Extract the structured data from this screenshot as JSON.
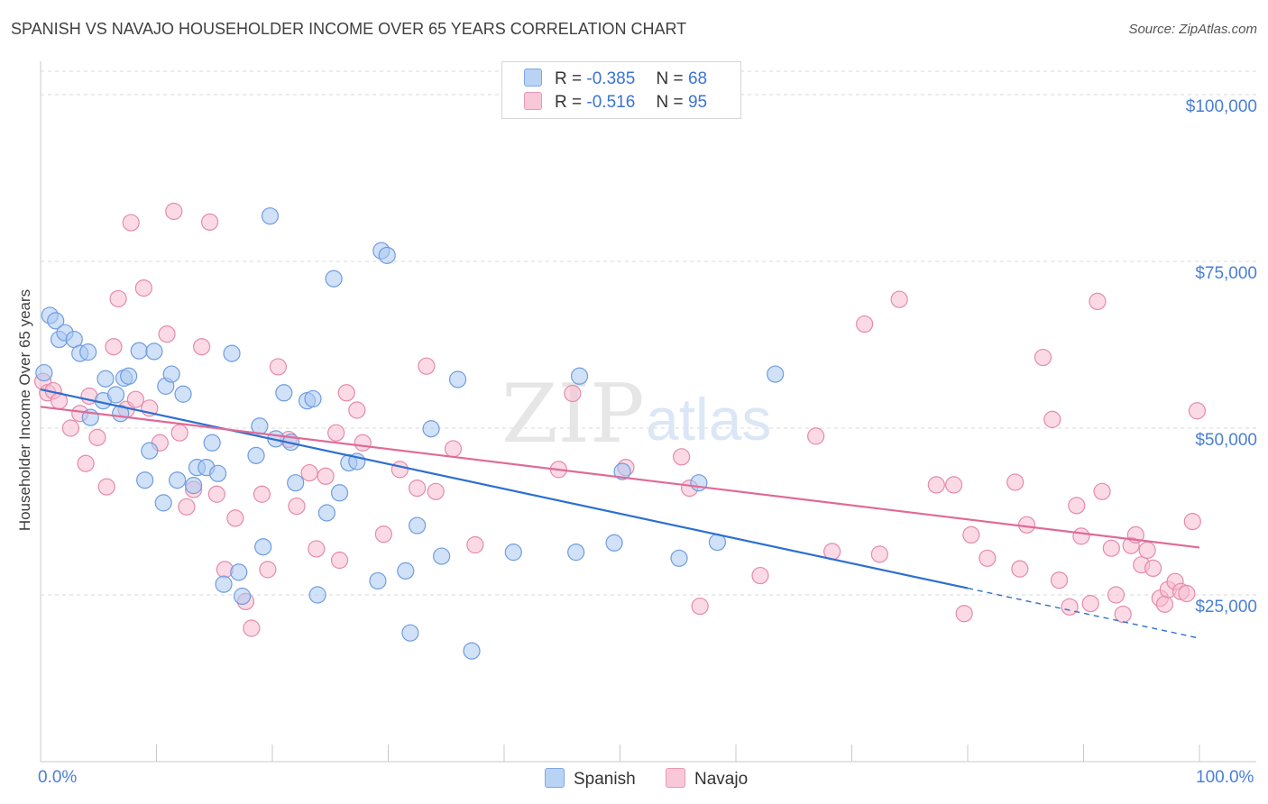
{
  "header": {
    "title": "SPANISH VS NAVAJO HOUSEHOLDER INCOME OVER 65 YEARS CORRELATION CHART",
    "source": "Source: ZipAtlas.com"
  },
  "watermark": {
    "zip": "ZIP",
    "atlas": "atlas"
  },
  "legend": {
    "spanish": {
      "r_label": "R =",
      "r_value": "-0.385",
      "n_label": "N =",
      "n_value": "68"
    },
    "navajo": {
      "r_label": "R =",
      "r_value": "-0.516",
      "n_label": "N =",
      "n_value": "95"
    }
  },
  "colors": {
    "spanish_fill": "#a9c8f3",
    "spanish_stroke": "#6f9de0",
    "spanish_line": "#2d6fd0",
    "navajo_fill": "#f7bcd0",
    "navajo_stroke": "#e58aab",
    "navajo_line": "#e06a96",
    "tick_text": "#4a7fd6",
    "grid": "#d9d9d9"
  },
  "chart_data": {
    "type": "scatter",
    "title": "SPANISH VS NAVAJO HOUSEHOLDER INCOME OVER 65 YEARS CORRELATION CHART",
    "xlabel": "",
    "ylabel": "Householder Income Over 65 years",
    "xlim": [
      0,
      100
    ],
    "ylim": [
      0,
      105000
    ],
    "x_tick_labels": [
      "0.0%",
      "100.0%"
    ],
    "y_ticks": [
      {
        "value": 25000,
        "label": "$25,000"
      },
      {
        "value": 50000,
        "label": "$50,000"
      },
      {
        "value": 75000,
        "label": "$75,000"
      },
      {
        "value": 100000,
        "label": "$100,000"
      }
    ],
    "grid": true,
    "legend_position": "top-center",
    "series": [
      {
        "name": "Spanish",
        "r": -0.385,
        "n": 68,
        "trend": {
          "x0": 0,
          "y0": 55800,
          "x1": 80,
          "y1": 26000,
          "dash_to_x": 100,
          "dash_to_y": 18500
        },
        "points": [
          [
            0.3,
            58300
          ],
          [
            0.8,
            66900
          ],
          [
            1.3,
            66100
          ],
          [
            1.6,
            63300
          ],
          [
            2.1,
            64300
          ],
          [
            2.9,
            63300
          ],
          [
            3.4,
            61200
          ],
          [
            4.1,
            61400
          ],
          [
            4.3,
            51600
          ],
          [
            5.4,
            54100
          ],
          [
            5.6,
            57400
          ],
          [
            6.5,
            55000
          ],
          [
            7.2,
            57500
          ],
          [
            6.9,
            52200
          ],
          [
            7.6,
            57800
          ],
          [
            8.5,
            61600
          ],
          [
            9.0,
            42200
          ],
          [
            9.4,
            46600
          ],
          [
            9.8,
            61500
          ],
          [
            10.6,
            38800
          ],
          [
            10.8,
            56300
          ],
          [
            11.3,
            58100
          ],
          [
            11.8,
            42200
          ],
          [
            12.3,
            55100
          ],
          [
            13.2,
            41400
          ],
          [
            13.5,
            44100
          ],
          [
            14.3,
            44100
          ],
          [
            14.8,
            47800
          ],
          [
            15.3,
            43200
          ],
          [
            15.8,
            26600
          ],
          [
            16.5,
            61200
          ],
          [
            17.1,
            28400
          ],
          [
            17.4,
            24800
          ],
          [
            18.6,
            45900
          ],
          [
            18.9,
            50300
          ],
          [
            19.2,
            32200
          ],
          [
            20.3,
            48400
          ],
          [
            19.8,
            81800
          ],
          [
            21.0,
            55300
          ],
          [
            21.6,
            47900
          ],
          [
            22.0,
            41800
          ],
          [
            23.0,
            54100
          ],
          [
            23.5,
            54400
          ],
          [
            23.9,
            25000
          ],
          [
            24.7,
            37300
          ],
          [
            25.3,
            72400
          ],
          [
            25.8,
            40300
          ],
          [
            26.6,
            44800
          ],
          [
            27.3,
            45000
          ],
          [
            29.4,
            76600
          ],
          [
            29.1,
            27100
          ],
          [
            29.9,
            75900
          ],
          [
            31.5,
            28600
          ],
          [
            31.9,
            19300
          ],
          [
            32.5,
            35400
          ],
          [
            33.7,
            49900
          ],
          [
            34.6,
            30800
          ],
          [
            36.0,
            57300
          ],
          [
            37.2,
            16600
          ],
          [
            40.8,
            31400
          ],
          [
            46.5,
            57800
          ],
          [
            46.2,
            31400
          ],
          [
            49.5,
            32800
          ],
          [
            50.2,
            43500
          ],
          [
            55.1,
            30500
          ],
          [
            56.8,
            41800
          ],
          [
            58.4,
            32900
          ],
          [
            63.4,
            58100
          ]
        ]
      },
      {
        "name": "Navajo",
        "r": -0.516,
        "n": 95,
        "trend": {
          "x0": 0,
          "y0": 53200,
          "x1": 100,
          "y1": 32100
        },
        "points": [
          [
            0.2,
            57000
          ],
          [
            0.6,
            55300
          ],
          [
            1.1,
            55600
          ],
          [
            1.6,
            54100
          ],
          [
            2.6,
            50000
          ],
          [
            3.4,
            52200
          ],
          [
            3.9,
            44700
          ],
          [
            4.2,
            54800
          ],
          [
            4.9,
            48600
          ],
          [
            5.7,
            41200
          ],
          [
            6.3,
            62200
          ],
          [
            6.7,
            69400
          ],
          [
            7.4,
            52800
          ],
          [
            7.8,
            80800
          ],
          [
            8.2,
            54300
          ],
          [
            8.9,
            71000
          ],
          [
            9.4,
            53000
          ],
          [
            10.3,
            47800
          ],
          [
            10.9,
            64100
          ],
          [
            11.5,
            82500
          ],
          [
            12.0,
            49300
          ],
          [
            12.6,
            38200
          ],
          [
            13.2,
            40800
          ],
          [
            13.9,
            62200
          ],
          [
            14.6,
            80900
          ],
          [
            15.2,
            40100
          ],
          [
            15.9,
            28800
          ],
          [
            16.8,
            36500
          ],
          [
            17.7,
            24000
          ],
          [
            18.2,
            20000
          ],
          [
            19.1,
            40100
          ],
          [
            19.6,
            28800
          ],
          [
            20.5,
            59200
          ],
          [
            21.4,
            48300
          ],
          [
            22.1,
            38300
          ],
          [
            23.2,
            43300
          ],
          [
            23.8,
            31900
          ],
          [
            24.6,
            42800
          ],
          [
            25.5,
            49300
          ],
          [
            25.8,
            30200
          ],
          [
            26.4,
            55300
          ],
          [
            27.3,
            52700
          ],
          [
            27.8,
            47800
          ],
          [
            29.6,
            34100
          ],
          [
            31.0,
            43800
          ],
          [
            32.5,
            41000
          ],
          [
            33.3,
            59300
          ],
          [
            34.1,
            40500
          ],
          [
            35.6,
            46900
          ],
          [
            37.5,
            32500
          ],
          [
            44.7,
            43800
          ],
          [
            45.9,
            55200
          ],
          [
            50.5,
            44100
          ],
          [
            55.3,
            45700
          ],
          [
            56.0,
            41000
          ],
          [
            56.9,
            23300
          ],
          [
            62.1,
            27900
          ],
          [
            66.9,
            48800
          ],
          [
            68.3,
            31500
          ],
          [
            71.1,
            65600
          ],
          [
            72.4,
            31100
          ],
          [
            74.1,
            69300
          ],
          [
            77.3,
            41500
          ],
          [
            78.8,
            41500
          ],
          [
            79.7,
            22200
          ],
          [
            80.3,
            34000
          ],
          [
            81.7,
            30500
          ],
          [
            84.1,
            41900
          ],
          [
            84.5,
            28900
          ],
          [
            85.1,
            35500
          ],
          [
            86.5,
            60600
          ],
          [
            87.3,
            51300
          ],
          [
            87.9,
            27200
          ],
          [
            88.8,
            23200
          ],
          [
            89.4,
            38400
          ],
          [
            89.8,
            33800
          ],
          [
            90.6,
            23700
          ],
          [
            91.2,
            69000
          ],
          [
            91.6,
            40500
          ],
          [
            92.4,
            32000
          ],
          [
            92.8,
            25000
          ],
          [
            93.4,
            22100
          ],
          [
            94.1,
            32400
          ],
          [
            94.5,
            34000
          ],
          [
            95.0,
            29500
          ],
          [
            95.5,
            31700
          ],
          [
            96.0,
            29000
          ],
          [
            96.6,
            24500
          ],
          [
            97.0,
            23600
          ],
          [
            97.3,
            25800
          ],
          [
            97.9,
            27000
          ],
          [
            98.4,
            25500
          ],
          [
            98.9,
            25200
          ],
          [
            99.4,
            36000
          ],
          [
            99.8,
            52600
          ]
        ]
      }
    ]
  },
  "bottom_legend": {
    "spanish": "Spanish",
    "navajo": "Navajo"
  }
}
